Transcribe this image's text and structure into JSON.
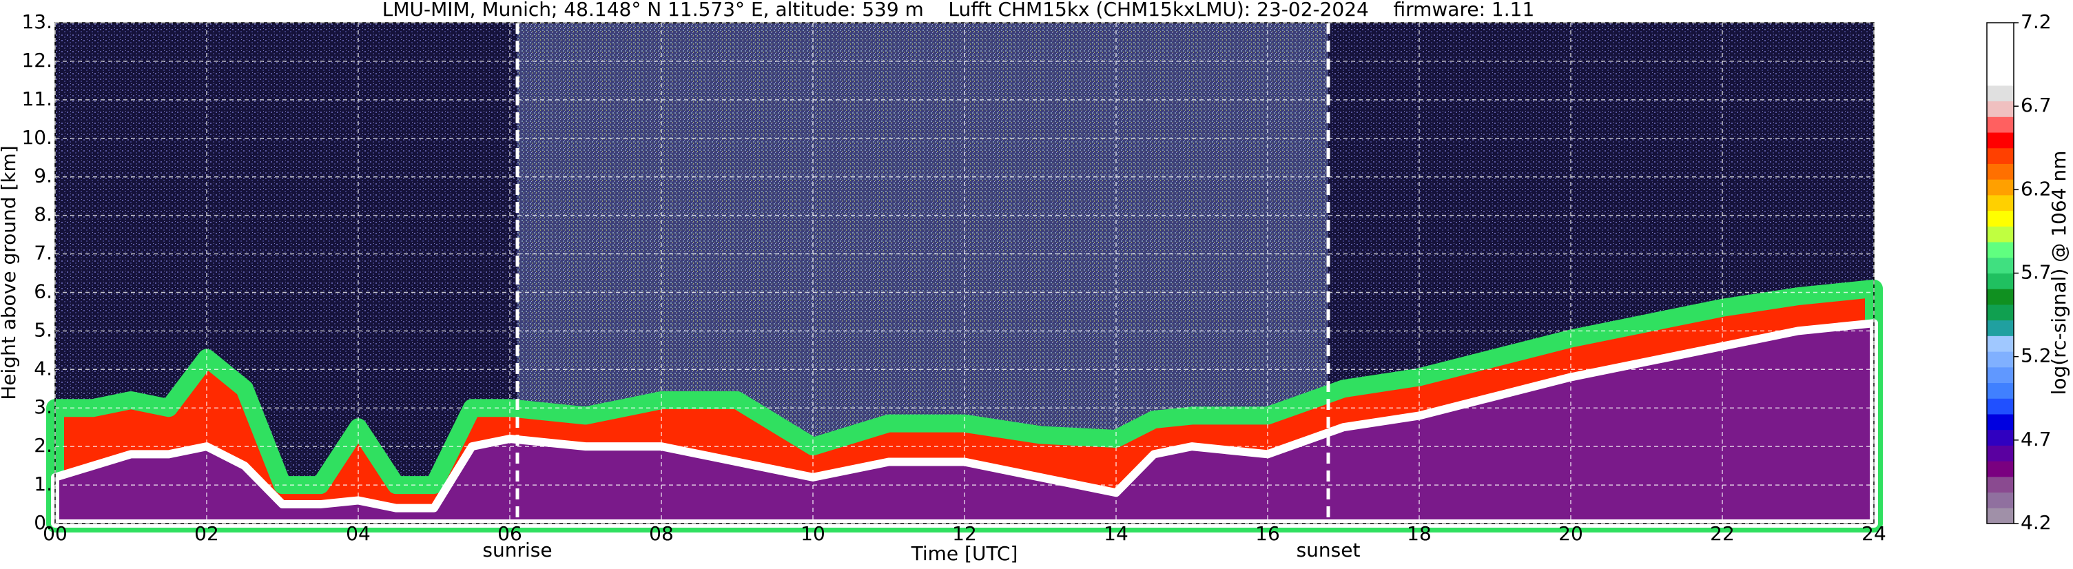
{
  "chart_data": {
    "type": "heatmap",
    "title": "LMU-MIM, Munich; 48.148° N 11.573° E, altitude: 539 m    Lufft CHM15kx (CHM15kxLMU): 23-02-2024    firmware: 1.11",
    "xlabel": "Time [UTC]",
    "ylabel": "Height above ground [km]",
    "xlim": [
      0,
      24
    ],
    "xticks": [
      {
        "value": 0,
        "label": "00"
      },
      {
        "value": 2,
        "label": "02"
      },
      {
        "value": 4,
        "label": "04"
      },
      {
        "value": 6,
        "label": "06"
      },
      {
        "value": 8,
        "label": "08"
      },
      {
        "value": 10,
        "label": "10"
      },
      {
        "value": 12,
        "label": "12"
      },
      {
        "value": 14,
        "label": "14"
      },
      {
        "value": 16,
        "label": "16"
      },
      {
        "value": 18,
        "label": "18"
      },
      {
        "value": 20,
        "label": "20"
      },
      {
        "value": 22,
        "label": "22"
      },
      {
        "value": 24,
        "label": "24"
      }
    ],
    "ylim": [
      0,
      13
    ],
    "yticks": [
      {
        "value": 0,
        "label": "0."
      },
      {
        "value": 1,
        "label": "1."
      },
      {
        "value": 2,
        "label": "2."
      },
      {
        "value": 3,
        "label": "3."
      },
      {
        "value": 4,
        "label": "4."
      },
      {
        "value": 5,
        "label": "5."
      },
      {
        "value": 6,
        "label": "6."
      },
      {
        "value": 7,
        "label": "7."
      },
      {
        "value": 8,
        "label": "8."
      },
      {
        "value": 9,
        "label": "9."
      },
      {
        "value": 10,
        "label": "10."
      },
      {
        "value": 11,
        "label": "11."
      },
      {
        "value": 12,
        "label": "12."
      },
      {
        "value": 13,
        "label": "13."
      }
    ],
    "grid": true,
    "annotations": [
      {
        "text": "sunrise",
        "x": 6.1
      },
      {
        "text": "sunset",
        "x": 16.8
      }
    ],
    "x": [
      0,
      0.5,
      1,
      1.5,
      2,
      2.5,
      3,
      3.5,
      4,
      4.5,
      5,
      5.5,
      6,
      7,
      8,
      9,
      10,
      11,
      12,
      13,
      14,
      14.5,
      15,
      16,
      17,
      18,
      19,
      20,
      21,
      22,
      23,
      24
    ],
    "series": [
      {
        "color": "#ff2a00",
        "values": [
          3.0,
          3.0,
          3.2,
          3.0,
          4.3,
          3.5,
          1.0,
          1.0,
          2.5,
          1.0,
          1.0,
          3.0,
          3.0,
          2.8,
          3.2,
          3.2,
          2.0,
          2.6,
          2.6,
          2.3,
          2.2,
          2.7,
          2.8,
          2.8,
          3.5,
          3.8,
          4.3,
          4.8,
          5.2,
          5.6,
          5.9,
          6.1
        ]
      },
      {
        "color": "#7a1a8a",
        "values": [
          1.2,
          1.5,
          1.8,
          1.8,
          2.0,
          1.5,
          0.5,
          0.5,
          0.6,
          0.4,
          0.4,
          2.0,
          2.2,
          2.0,
          2.0,
          1.6,
          1.2,
          1.6,
          1.6,
          1.2,
          0.8,
          1.8,
          2.0,
          1.8,
          2.5,
          2.8,
          3.3,
          3.8,
          4.2,
          4.6,
          5.0,
          5.2
        ]
      }
    ],
    "colorbar": {
      "label": "log(rc-signal) @ 1064 nm",
      "lim": [
        4.2,
        7.2
      ],
      "ticks": [
        4.2,
        4.7,
        5.2,
        5.7,
        6.2,
        6.7,
        7.2
      ],
      "colors": [
        "#a090a8",
        "#90709f",
        "#8a4a90",
        "#7a0080",
        "#5a00a0",
        "#3000c0",
        "#0000e0",
        "#2050ff",
        "#4080ff",
        "#6098ff",
        "#80b0ff",
        "#a0c8ff",
        "#20a0a0",
        "#10a050",
        "#109020",
        "#20c060",
        "#40e080",
        "#60ff80",
        "#c0ff40",
        "#ffff00",
        "#ffd000",
        "#ffa000",
        "#ff7000",
        "#ff4000",
        "#ff0000",
        "#ff6060",
        "#f0c0c0",
        "#e0e0e0",
        "#ffffff",
        "#ffffff",
        "#ffffff",
        "#ffffff"
      ]
    }
  }
}
